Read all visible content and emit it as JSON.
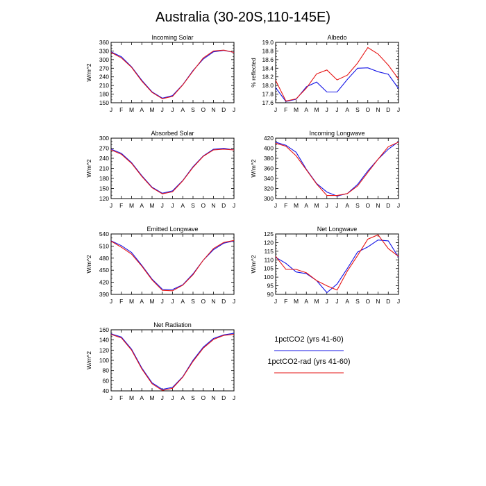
{
  "title": "Australia (30-20S,110-145E)",
  "months": [
    "J",
    "F",
    "M",
    "A",
    "M",
    "J",
    "J",
    "A",
    "S",
    "O",
    "N",
    "D",
    "J"
  ],
  "legend": [
    {
      "label": "1pctCO2 (yrs 41-60)",
      "color": "#1515e6"
    },
    {
      "label": "1pctCO2-rad (yrs 41-60)",
      "color": "#e61515"
    }
  ],
  "chart_data": [
    {
      "type": "line",
      "title": "Incoming Solar",
      "ylabel": "W/m^2",
      "ylim": [
        150,
        360
      ],
      "yticks": [
        "150",
        "180",
        "210",
        "240",
        "270",
        "300",
        "330",
        "360"
      ],
      "x": [
        "J",
        "F",
        "M",
        "A",
        "M",
        "J",
        "J",
        "A",
        "S",
        "O",
        "N",
        "D",
        "J"
      ],
      "series": [
        {
          "name": "1pctCO2 (yrs 41-60)",
          "color": "#1515e6",
          "values": [
            327,
            310,
            275,
            228,
            188,
            166,
            175,
            213,
            262,
            302,
            327,
            332,
            325
          ]
        },
        {
          "name": "1pctCO2-rad (yrs 41-60)",
          "color": "#e61515",
          "values": [
            325,
            306,
            273,
            225,
            186,
            164,
            172,
            212,
            260,
            306,
            330,
            333,
            325
          ]
        }
      ]
    },
    {
      "type": "line",
      "title": "Albedo",
      "ylabel": "% reflected",
      "ylim": [
        17.6,
        19.0
      ],
      "yticks": [
        "17.6",
        "17.8",
        "18.0",
        "18.2",
        "18.4",
        "18.6",
        "18.8",
        "19.0"
      ],
      "x": [
        "J",
        "F",
        "M",
        "A",
        "M",
        "J",
        "J",
        "A",
        "S",
        "O",
        "N",
        "D",
        "J"
      ],
      "series": [
        {
          "name": "1pctCO2 (yrs 41-60)",
          "color": "#1515e6",
          "values": [
            17.95,
            17.63,
            17.68,
            17.97,
            18.08,
            17.85,
            17.85,
            18.14,
            18.4,
            18.41,
            18.32,
            18.26,
            17.93
          ]
        },
        {
          "name": "1pctCO2-rad (yrs 41-60)",
          "color": "#e61515",
          "values": [
            18.12,
            17.64,
            17.69,
            17.94,
            18.27,
            18.36,
            18.13,
            18.24,
            18.52,
            18.88,
            18.73,
            18.47,
            18.15
          ]
        }
      ]
    },
    {
      "type": "line",
      "title": "Absorbed Solar",
      "ylabel": "W/m^2",
      "ylim": [
        120,
        300
      ],
      "yticks": [
        "120",
        "150",
        "180",
        "210",
        "240",
        "270",
        "300"
      ],
      "x": [
        "J",
        "F",
        "M",
        "A",
        "M",
        "J",
        "J",
        "A",
        "S",
        "O",
        "N",
        "D",
        "J"
      ],
      "series": [
        {
          "name": "1pctCO2 (yrs 41-60)",
          "color": "#1515e6",
          "values": [
            267,
            255,
            227,
            188,
            154,
            136,
            143,
            174,
            215,
            247,
            267,
            270,
            265
          ]
        },
        {
          "name": "1pctCO2-rad (yrs 41-60)",
          "color": "#e61515",
          "values": [
            265,
            252,
            225,
            186,
            152,
            134,
            140,
            173,
            213,
            246,
            265,
            267,
            265
          ]
        }
      ]
    },
    {
      "type": "line",
      "title": "Incoming Longwave",
      "ylabel": "W/m^2",
      "ylim": [
        300,
        420
      ],
      "yticks": [
        "300",
        "320",
        "340",
        "360",
        "380",
        "400",
        "420"
      ],
      "x": [
        "J",
        "F",
        "M",
        "A",
        "M",
        "J",
        "J",
        "A",
        "S",
        "O",
        "N",
        "D",
        "J"
      ],
      "series": [
        {
          "name": "1pctCO2 (yrs 41-60)",
          "color": "#1515e6",
          "values": [
            412,
            406,
            392,
            358,
            330,
            313,
            305,
            310,
            328,
            355,
            378,
            398,
            413
          ]
        },
        {
          "name": "1pctCO2-rad (yrs 41-60)",
          "color": "#e61515",
          "values": [
            410,
            404,
            385,
            357,
            329,
            306,
            306,
            310,
            325,
            352,
            378,
            403,
            412
          ]
        }
      ]
    },
    {
      "type": "line",
      "title": "Emitted Longwave",
      "ylabel": "W/m^2",
      "ylim": [
        390,
        540
      ],
      "yticks": [
        "390",
        "420",
        "450",
        "480",
        "510",
        "540"
      ],
      "x": [
        "J",
        "F",
        "M",
        "A",
        "M",
        "J",
        "J",
        "A",
        "S",
        "O",
        "N",
        "D",
        "J"
      ],
      "series": [
        {
          "name": "1pctCO2 (yrs 41-60)",
          "color": "#1515e6",
          "values": [
            523,
            511,
            494,
            462,
            428,
            403,
            402,
            414,
            441,
            475,
            501,
            517,
            523
          ]
        },
        {
          "name": "1pctCO2-rad (yrs 41-60)",
          "color": "#e61515",
          "values": [
            522,
            507,
            490,
            460,
            426,
            400,
            399,
            413,
            439,
            475,
            504,
            519,
            524
          ]
        }
      ]
    },
    {
      "type": "line",
      "title": "Net Longwave",
      "ylabel": "W/m^2",
      "ylim": [
        90,
        125
      ],
      "yticks": [
        "90",
        "95",
        "100",
        "105",
        "110",
        "115",
        "120",
        "125"
      ],
      "x": [
        "J",
        "F",
        "M",
        "A",
        "M",
        "J",
        "J",
        "A",
        "S",
        "O",
        "N",
        "D",
        "J"
      ],
      "series": [
        {
          "name": "1pctCO2 (yrs 41-60)",
          "color": "#1515e6",
          "values": [
            111.5,
            108,
            103,
            102,
            98,
            91,
            96,
            105,
            114.5,
            117.5,
            121.5,
            121,
            111.5
          ]
        },
        {
          "name": "1pctCO2-rad (yrs 41-60)",
          "color": "#e61515",
          "values": [
            112,
            104.5,
            104.5,
            102.5,
            98,
            95,
            92.5,
            103.5,
            112.5,
            122,
            124.5,
            116.5,
            112
          ]
        }
      ]
    },
    {
      "type": "line",
      "title": "Net Radiation",
      "ylabel": "W/m^2",
      "ylim": [
        40,
        160
      ],
      "yticks": [
        "40",
        "60",
        "80",
        "100",
        "120",
        "140",
        "160"
      ],
      "x": [
        "J",
        "F",
        "M",
        "A",
        "M",
        "J",
        "J",
        "A",
        "S",
        "O",
        "N",
        "D",
        "J"
      ],
      "series": [
        {
          "name": "1pctCO2 (yrs 41-60)",
          "color": "#1515e6",
          "values": [
            152,
            146,
            122,
            85,
            56,
            43,
            47,
            68,
            100,
            126,
            143,
            150,
            153
          ]
        },
        {
          "name": "1pctCO2-rad (yrs 41-60)",
          "color": "#e61515",
          "values": [
            151,
            144,
            120,
            83,
            54,
            41,
            45,
            67,
            98,
            124,
            141,
            149,
            151
          ]
        }
      ]
    }
  ]
}
